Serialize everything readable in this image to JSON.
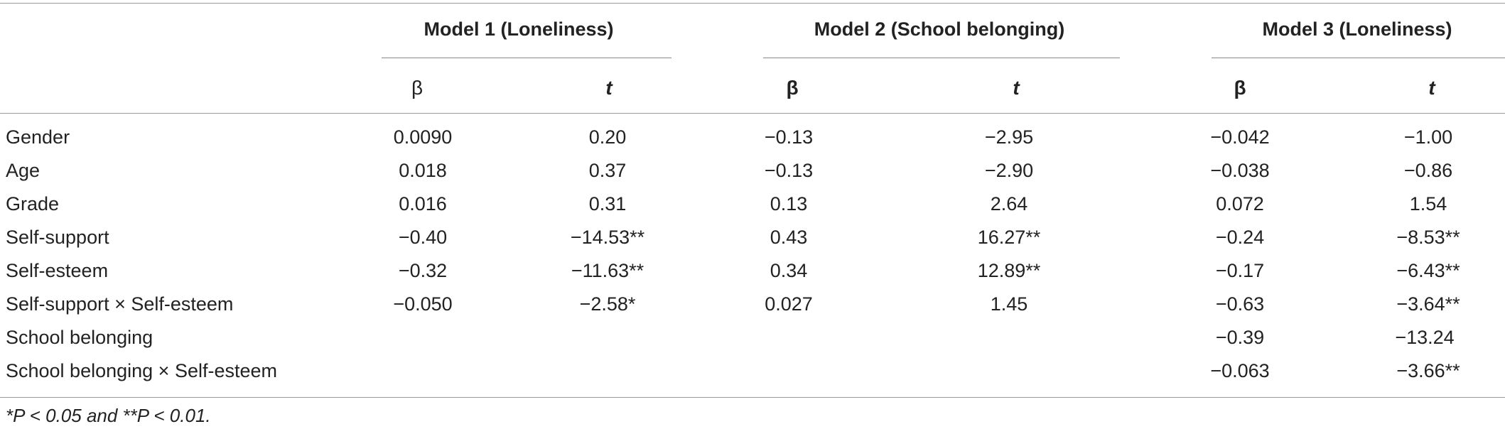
{
  "table": {
    "models": [
      {
        "label": "Model 1 (Loneliness)"
      },
      {
        "label": "Model 2 (School belonging)"
      },
      {
        "label": "Model 3 (Loneliness)"
      }
    ],
    "subheaders": {
      "m1_beta": "β",
      "m1_t": "t",
      "m2_beta": "β",
      "m2_t": "t",
      "m3_beta": "β",
      "m3_t": "t"
    },
    "rows": [
      {
        "label": "Gender",
        "m1_beta": "0.0090",
        "m1_t": "0.20",
        "m2_beta": "−0.13",
        "m2_t": "−2.95",
        "m3_beta": "−0.042",
        "m3_t": "−1.00"
      },
      {
        "label": "Age",
        "m1_beta": "0.018",
        "m1_t": "0.37",
        "m2_beta": "−0.13",
        "m2_t": "−2.90",
        "m3_beta": "−0.038",
        "m3_t": "−0.86"
      },
      {
        "label": "Grade",
        "m1_beta": "0.016",
        "m1_t": "0.31",
        "m2_beta": "0.13",
        "m2_t": "2.64",
        "m3_beta": "0.072",
        "m3_t": "1.54"
      },
      {
        "label": "Self-support",
        "m1_beta": "−0.40",
        "m1_t": "−14.53**",
        "m2_beta": "0.43",
        "m2_t": "16.27**",
        "m3_beta": "−0.24",
        "m3_t": "−8.53**"
      },
      {
        "label": "Self-esteem",
        "m1_beta": "−0.32",
        "m1_t": "−11.63**",
        "m2_beta": "0.34",
        "m2_t": "12.89**",
        "m3_beta": "−0.17",
        "m3_t": "−6.43**"
      },
      {
        "label": "Self-support × Self-esteem",
        "m1_beta": "−0.050",
        "m1_t": "−2.58*",
        "m2_beta": "0.027",
        "m2_t": "1.45",
        "m3_beta": "−0.63",
        "m3_t": "−3.64**"
      },
      {
        "label": "School belonging",
        "m1_beta": "",
        "m1_t": "",
        "m2_beta": "",
        "m2_t": "",
        "m3_beta": "−0.39",
        "m3_t": "−13.24"
      },
      {
        "label": "School belonging × Self-esteem",
        "m1_beta": "",
        "m1_t": "",
        "m2_beta": "",
        "m2_t": "",
        "m3_beta": "−0.063",
        "m3_t": "−3.66**"
      }
    ],
    "footnote": "*P < 0.05 and **P < 0.01."
  }
}
